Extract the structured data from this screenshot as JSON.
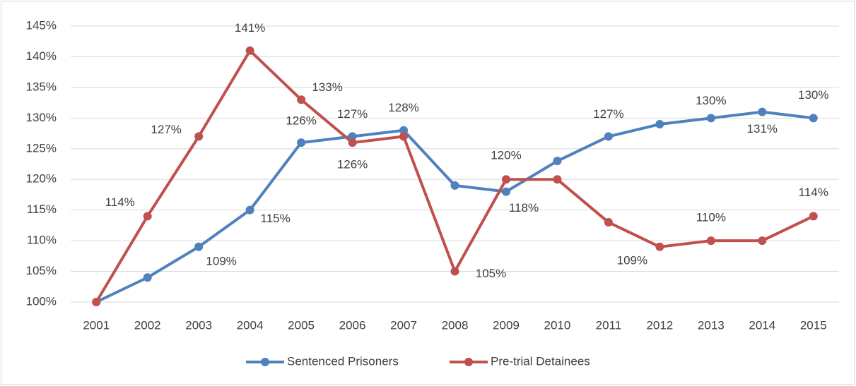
{
  "chart_data": {
    "type": "line",
    "categories": [
      "2001",
      "2002",
      "2003",
      "2004",
      "2005",
      "2006",
      "2007",
      "2008",
      "2009",
      "2010",
      "2011",
      "2012",
      "2013",
      "2014",
      "2015"
    ],
    "series": [
      {
        "name": "Sentenced Prisoners",
        "color": "#4f81bd",
        "values": [
          100,
          104,
          109,
          115,
          126,
          127,
          128,
          119,
          118,
          123,
          127,
          129,
          130,
          131,
          130
        ],
        "value_labels": [
          null,
          null,
          "109%",
          "115%",
          "126%",
          "127%",
          "128%",
          null,
          "118%",
          null,
          "127%",
          null,
          "130%",
          "131%",
          "130%"
        ]
      },
      {
        "name": "Pre-trial Detainees",
        "color": "#c0504d",
        "values": [
          100,
          114,
          127,
          141,
          133,
          126,
          127,
          105,
          120,
          120,
          113,
          109,
          110,
          110,
          114
        ],
        "value_labels": [
          null,
          "114%",
          "127%",
          "141%",
          "133%",
          "126%",
          null,
          "105%",
          "120%",
          null,
          null,
          "109%",
          "110%",
          null,
          "114%"
        ]
      }
    ],
    "ylim": [
      100,
      145
    ],
    "yticks": [
      {
        "value": 100,
        "label": "100%"
      },
      {
        "value": 105,
        "label": "105%"
      },
      {
        "value": 110,
        "label": "110%"
      },
      {
        "value": 115,
        "label": "115%"
      },
      {
        "value": 120,
        "label": "120%"
      },
      {
        "value": 125,
        "label": "125%"
      },
      {
        "value": 130,
        "label": "130%"
      },
      {
        "value": 135,
        "label": "135%"
      },
      {
        "value": 140,
        "label": "140%"
      },
      {
        "value": 145,
        "label": "145%"
      }
    ],
    "grid": true,
    "legend": "bottom"
  }
}
